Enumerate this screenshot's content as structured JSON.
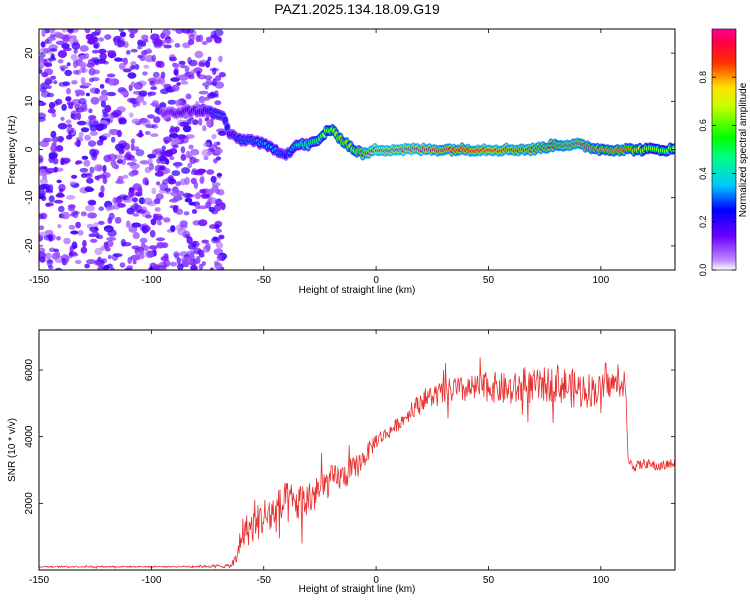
{
  "title": "PAZ1.2025.134.18.09.G19",
  "chart_data": [
    {
      "type": "heatmap",
      "xlabel": "Height of straight line (km)",
      "ylabel": "Frequency (Hz)",
      "xlim": [
        -150,
        133
      ],
      "ylim": [
        -25,
        25
      ],
      "xticks": [
        -150,
        -100,
        -50,
        0,
        50,
        100
      ],
      "yticks": [
        -20,
        -10,
        0,
        10,
        20
      ],
      "colorbar": {
        "label": "Normalized spectral amplitude",
        "range": [
          0.0,
          1.0
        ],
        "ticks": [
          0.0,
          0.2,
          0.4,
          0.6,
          0.8
        ],
        "tick_labels": [
          "0.0",
          "0.2",
          "0.4",
          "0.6",
          "0.8"
        ],
        "colormap": "hsv-rainbow (white-violet-blue-cyan-green-yellow-red-magenta)"
      },
      "noise_region": {
        "x_range": [
          -150,
          -68
        ],
        "freq_range": [
          -25,
          25
        ],
        "amplitude_range": [
          0.05,
          0.2
        ]
      },
      "ridge": {
        "x": [
          -95,
          -90,
          -85,
          -80,
          -75,
          -70,
          -68,
          -65,
          -60,
          -55,
          -50,
          -45,
          -40,
          -35,
          -30,
          -25,
          -22,
          -20,
          -15,
          -10,
          -5,
          0,
          10,
          20,
          30,
          40,
          50,
          60,
          70,
          80,
          85,
          90,
          100,
          110,
          120,
          133
        ],
        "frequency": [
          7.5,
          7.5,
          8,
          8,
          8,
          7,
          7,
          3,
          2,
          2,
          1,
          0,
          -1,
          1,
          1,
          2,
          4,
          4,
          2,
          0,
          -1,
          0,
          0,
          0,
          0,
          0,
          0,
          0,
          0,
          1,
          1,
          1,
          0,
          0,
          0,
          0
        ],
        "amplitude": [
          0.15,
          0.18,
          0.2,
          0.2,
          0.25,
          0.35,
          0.3,
          0.25,
          0.3,
          0.3,
          0.35,
          0.35,
          0.25,
          0.45,
          0.5,
          0.6,
          0.7,
          0.75,
          0.8,
          0.75,
          0.9,
          0.97,
          0.97,
          0.95,
          0.9,
          0.9,
          0.95,
          0.92,
          0.9,
          0.85,
          0.9,
          0.9,
          0.8,
          0.85,
          0.7,
          0.65
        ]
      }
    },
    {
      "type": "line",
      "xlabel": "Height of straight line (km)",
      "ylabel": "SNR (10 * v/v)",
      "xlim": [
        -150,
        133
      ],
      "ylim": [
        0,
        7200
      ],
      "xticks": [
        -150,
        -100,
        -50,
        0,
        50,
        100
      ],
      "yticks": [
        2000,
        4000,
        6000
      ],
      "series": [
        {
          "color": "#e8302e",
          "x": [
            -150,
            -120,
            -90,
            -65,
            -62,
            -60,
            -55,
            -50,
            -45,
            -40,
            -35,
            -30,
            -25,
            -20,
            -15,
            -10,
            -5,
            0,
            5,
            10,
            15,
            20,
            25,
            30,
            35,
            40,
            50,
            60,
            70,
            80,
            90,
            100,
            105,
            110,
            111,
            112,
            115,
            120,
            125,
            133
          ],
          "values": [
            100,
            100,
            100,
            120,
            300,
            1100,
            1300,
            1600,
            1700,
            2000,
            2000,
            2100,
            2400,
            2700,
            2800,
            3000,
            3400,
            3900,
            4100,
            4400,
            4700,
            5100,
            5200,
            5300,
            5400,
            5400,
            5500,
            5400,
            5500,
            5600,
            5400,
            5400,
            5600,
            5500,
            5600,
            3300,
            3100,
            3200,
            3100,
            3200
          ],
          "noise": [
            20,
            25,
            20,
            60,
            250,
            500,
            500,
            600,
            650,
            650,
            600,
            600,
            500,
            450,
            400,
            400,
            300,
            250,
            200,
            200,
            220,
            300,
            350,
            400,
            400,
            400,
            450,
            500,
            500,
            550,
            600,
            450,
            400,
            300,
            300,
            150,
            150,
            150,
            150,
            150
          ]
        }
      ]
    }
  ]
}
